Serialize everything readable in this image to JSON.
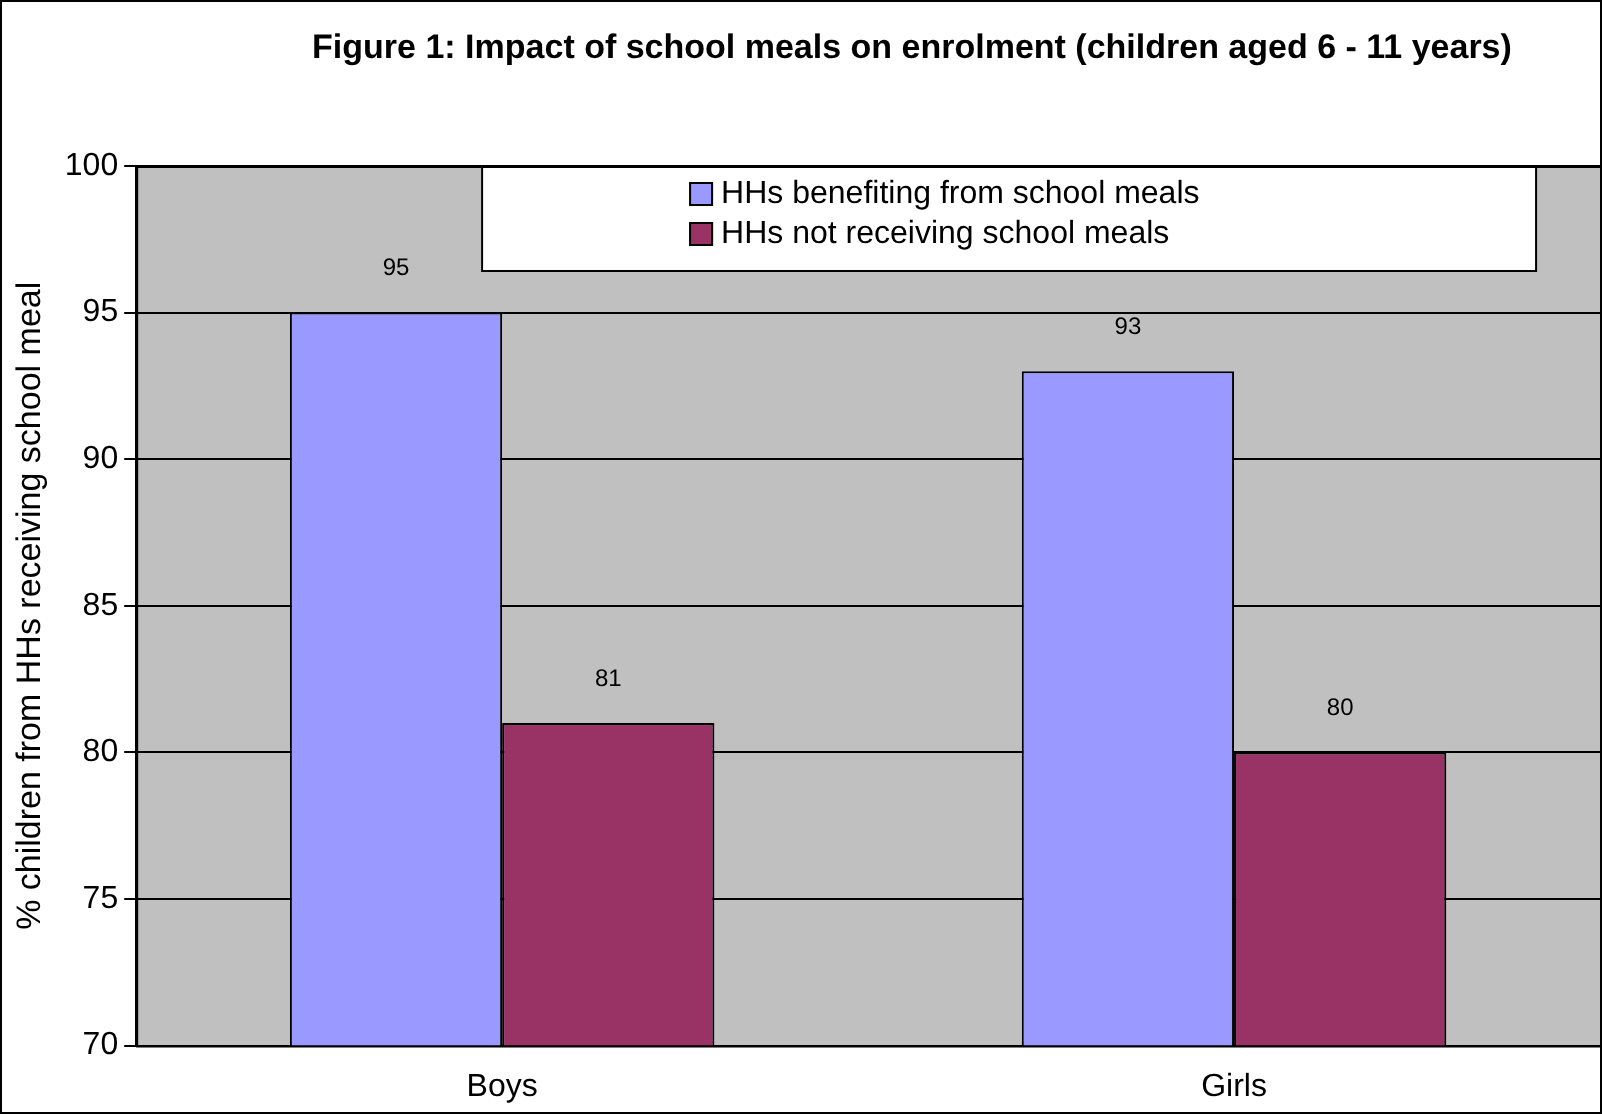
{
  "chart_data": {
    "type": "bar",
    "title": "Figure 1: Impact of school meals on enrolment (children aged 6 - 11 years)",
    "ylabel": "% children from HHs receiving school meal",
    "categories": [
      "Boys",
      "Girls"
    ],
    "series": [
      {
        "name": "HHs benefiting from school meals",
        "color": "#9999ff",
        "values": [
          95,
          93
        ]
      },
      {
        "name": "HHs not receiving school meals",
        "color": "#993366",
        "values": [
          81,
          80
        ]
      }
    ],
    "ylim": [
      70,
      100
    ],
    "yticks": [
      70,
      75,
      80,
      85,
      90,
      95,
      100
    ],
    "grid": "y",
    "legend": "top",
    "data_labels": true
  }
}
